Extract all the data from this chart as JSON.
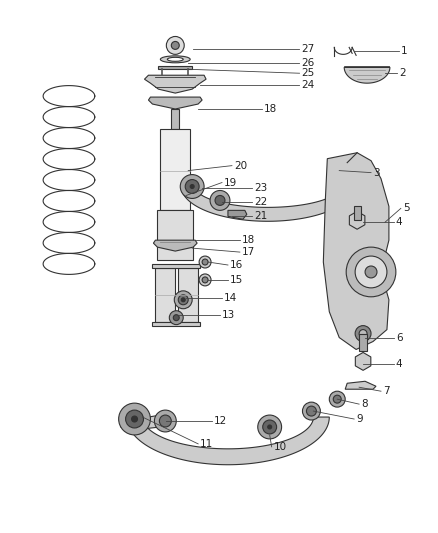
{
  "bg_color": "#ffffff",
  "line_color": "#333333",
  "label_color": "#222222",
  "label_fontsize": 7.5,
  "callouts": [
    [
      27,
      300,
      48,
      193,
      48
    ],
    [
      26,
      300,
      62,
      188,
      62
    ],
    [
      25,
      300,
      72,
      188,
      68
    ],
    [
      24,
      300,
      84,
      200,
      84
    ],
    [
      18,
      262,
      108,
      198,
      108
    ],
    [
      23,
      252,
      188,
      202,
      188
    ],
    [
      22,
      252,
      202,
      222,
      202
    ],
    [
      21,
      252,
      216,
      232,
      216
    ],
    [
      20,
      232,
      165,
      188,
      170
    ],
    [
      19,
      222,
      182,
      186,
      195
    ],
    [
      18,
      240,
      240,
      196,
      240
    ],
    [
      17,
      240,
      252,
      192,
      248
    ],
    [
      16,
      228,
      265,
      208,
      262
    ],
    [
      15,
      228,
      280,
      208,
      280
    ],
    [
      14,
      222,
      298,
      186,
      298
    ],
    [
      13,
      220,
      315,
      178,
      315
    ],
    [
      12,
      212,
      422,
      166,
      422
    ],
    [
      11,
      198,
      445,
      142,
      418
    ],
    [
      10,
      272,
      448,
      270,
      436
    ],
    [
      9,
      355,
      420,
      314,
      412
    ],
    [
      8,
      360,
      405,
      338,
      400
    ],
    [
      7,
      382,
      392,
      360,
      388
    ],
    [
      6,
      395,
      338,
      366,
      338
    ],
    [
      5,
      402,
      208,
      386,
      222
    ],
    [
      4,
      395,
      222,
      364,
      222
    ],
    [
      4,
      395,
      365,
      364,
      365
    ],
    [
      3,
      372,
      172,
      340,
      170
    ],
    [
      2,
      398,
      72,
      386,
      72
    ],
    [
      1,
      400,
      50,
      355,
      50
    ]
  ]
}
